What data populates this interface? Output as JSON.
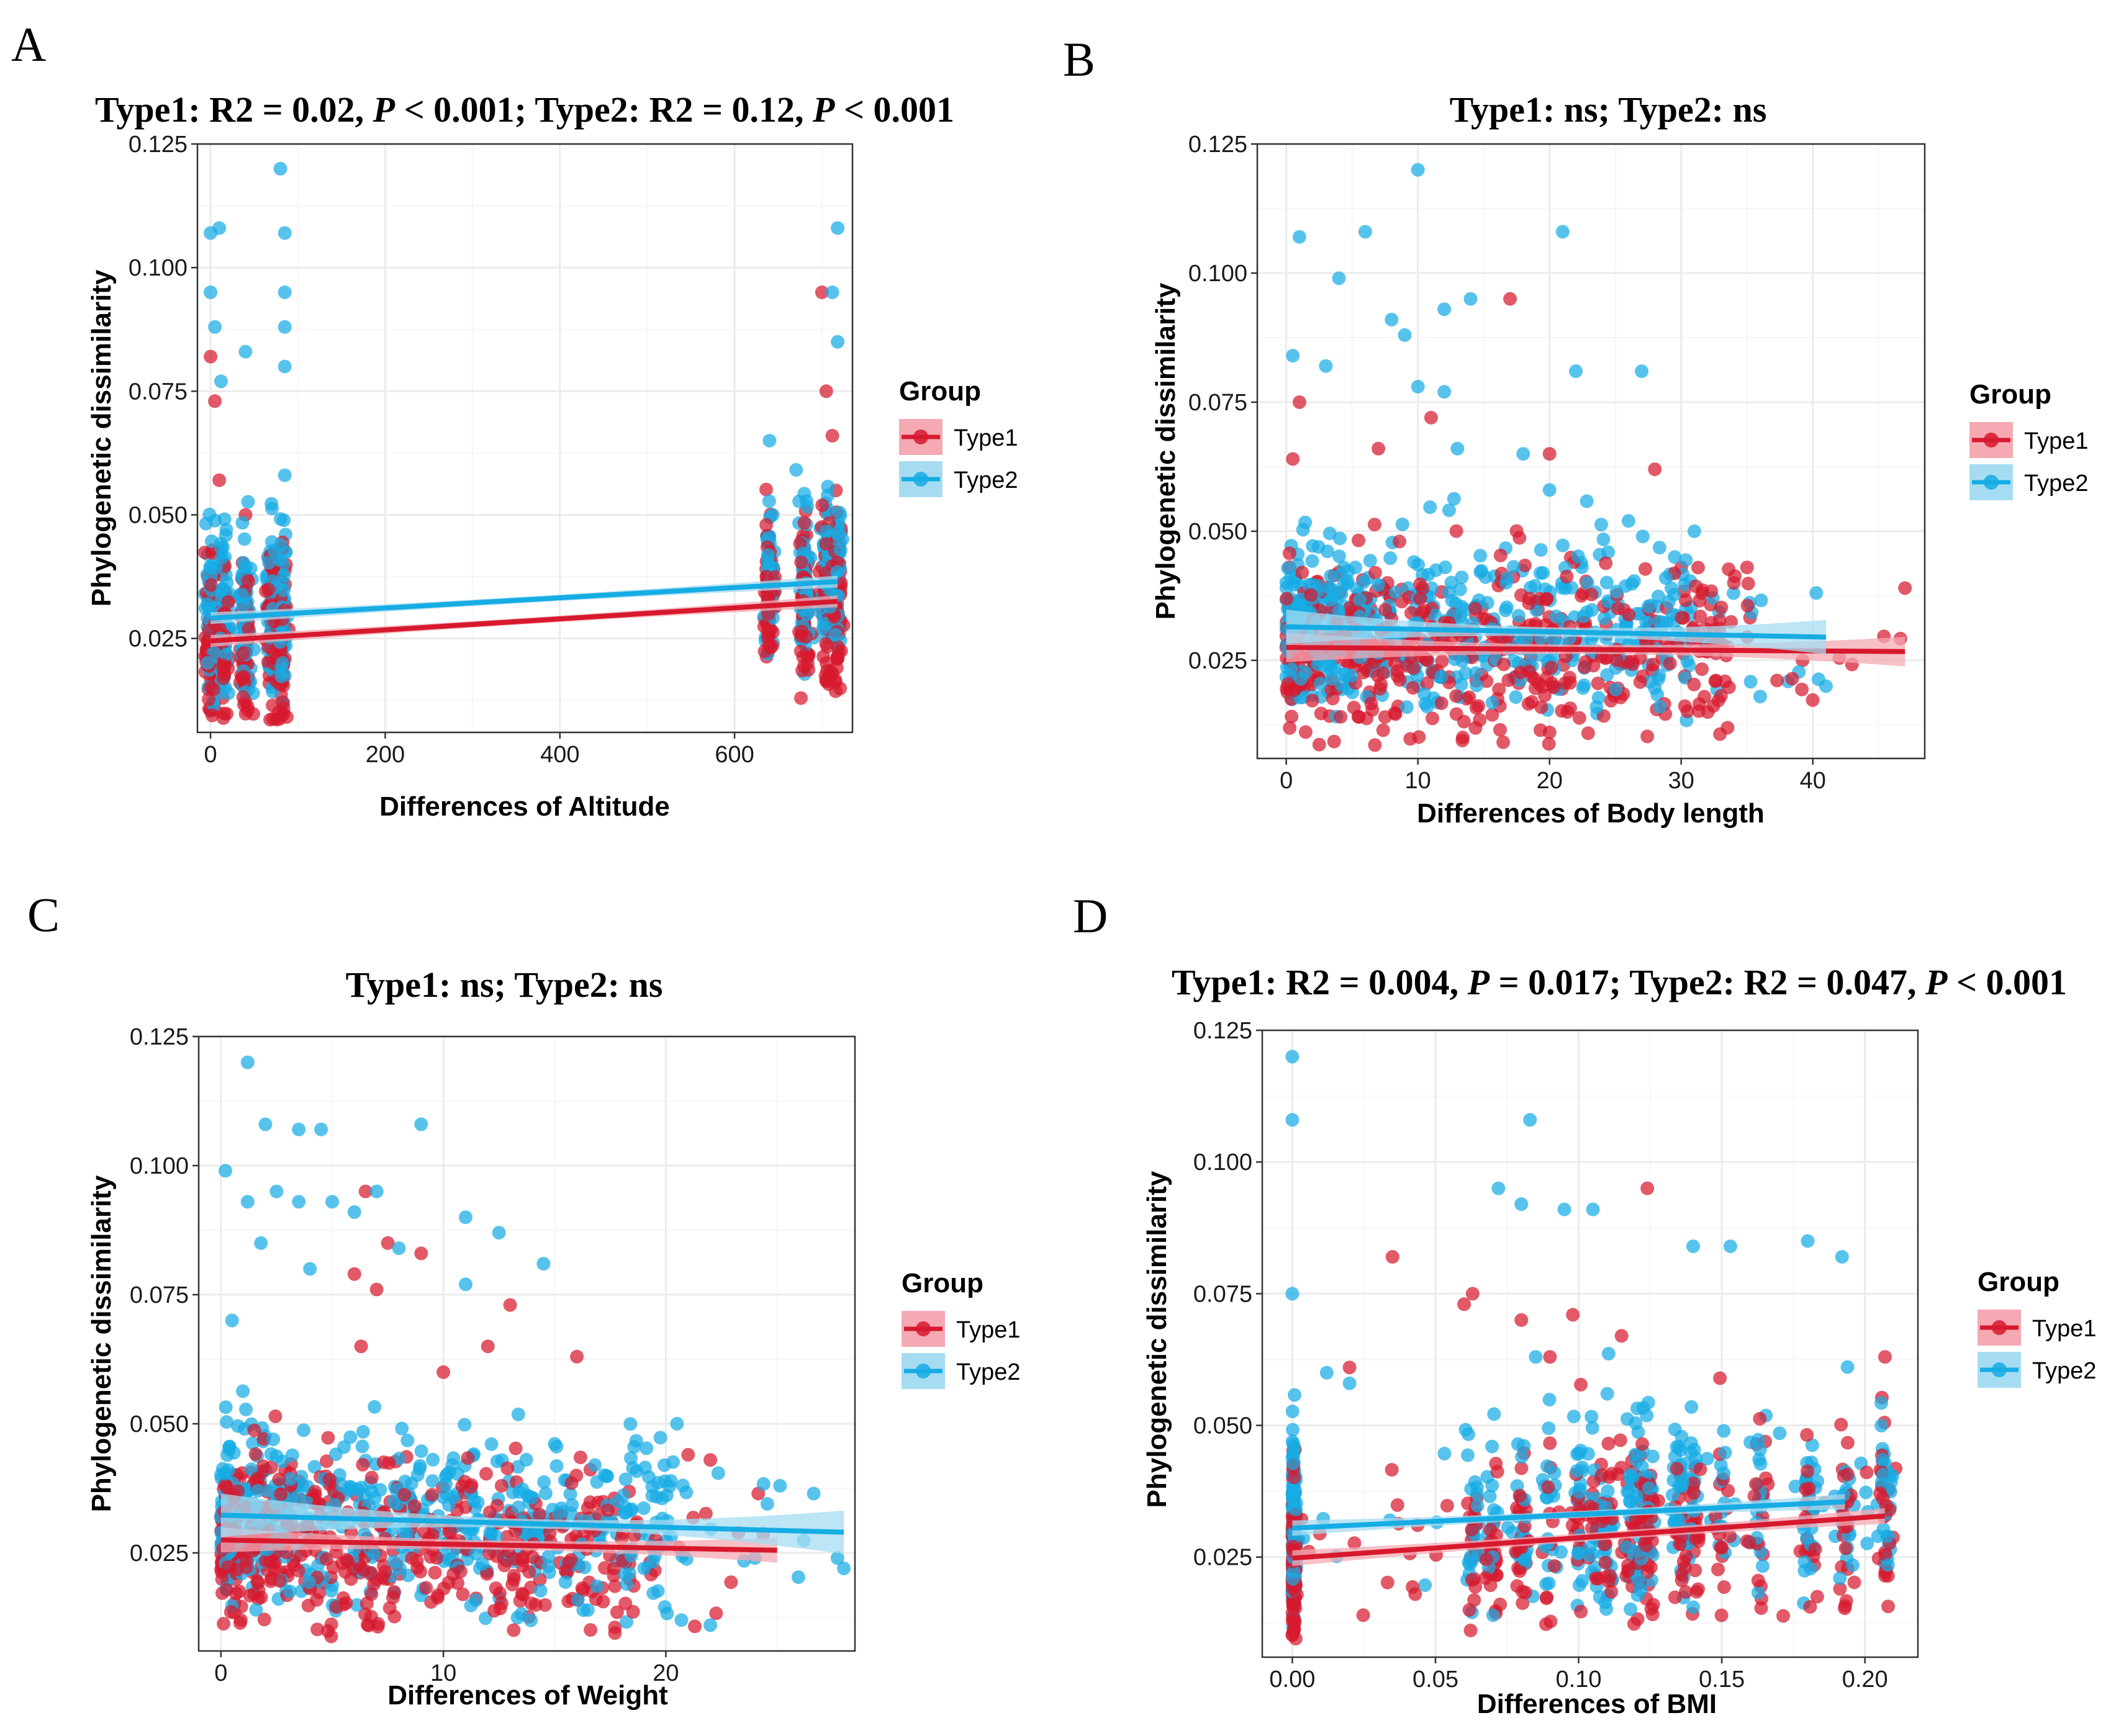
{
  "figure": {
    "legend_title": "Group",
    "groups": [
      "Type1",
      "Type2"
    ],
    "colors": {
      "Type1": "#D7192E",
      "Type2": "#16ACE4",
      "Type1_band": "#F4A9B3",
      "Type2_band": "#A6DCF2"
    }
  },
  "chart_data": [
    {
      "type": "scatter",
      "panel_label": "A",
      "title_parts": [
        {
          "t": "Type1: R2 = 0.02, "
        },
        {
          "t": "P",
          "italic": true
        },
        {
          "t": " < 0.001; Type2: R2 = 0.12, "
        },
        {
          "t": "P",
          "italic": true
        },
        {
          "t": " < 0.001"
        }
      ],
      "xlabel": "Differences of Altitude",
      "ylabel": "Phylogenetic dissimilarity",
      "xlim": [
        -15,
        735
      ],
      "ylim": [
        0.006,
        0.125
      ],
      "xticks": [
        0,
        200,
        400,
        600
      ],
      "xtick_labels": [
        "0",
        "200",
        "400",
        "600"
      ],
      "yticks": [
        0.025,
        0.05,
        0.075,
        0.1,
        0.125
      ],
      "ytick_labels": [
        "0.025",
        "0.050",
        "0.075",
        "0.100",
        "0.125"
      ],
      "x_clusters": [
        0,
        15,
        40,
        70,
        82,
        640,
        680,
        705,
        718
      ],
      "fit": {
        "Type1": {
          "x": [
            0,
            718
          ],
          "y": [
            0.0245,
            0.0325
          ],
          "se": [
            0.0006,
            0.0012
          ]
        },
        "Type2": {
          "x": [
            0,
            718
          ],
          "y": [
            0.0291,
            0.0365
          ],
          "se": [
            0.0006,
            0.0012
          ]
        }
      },
      "highlights": {
        "Type1": [
          [
            0,
            0.082
          ],
          [
            5,
            0.073
          ],
          [
            700,
            0.095
          ],
          [
            705,
            0.075
          ],
          [
            712,
            0.066
          ],
          [
            10,
            0.057
          ],
          [
            40,
            0.05
          ]
        ],
        "Type2": [
          [
            0,
            0.107
          ],
          [
            10,
            0.108
          ],
          [
            80,
            0.12
          ],
          [
            85,
            0.107
          ],
          [
            718,
            0.108
          ],
          [
            712,
            0.095
          ],
          [
            0,
            0.095
          ],
          [
            85,
            0.095
          ],
          [
            85,
            0.088
          ],
          [
            5,
            0.088
          ],
          [
            40,
            0.083
          ],
          [
            12,
            0.077
          ],
          [
            85,
            0.08
          ],
          [
            640,
            0.065
          ],
          [
            85,
            0.058
          ],
          [
            718,
            0.085
          ]
        ]
      }
    },
    {
      "type": "scatter",
      "panel_label": "B",
      "title_parts": [
        {
          "t": "Type1: ns; Type2: ns"
        }
      ],
      "xlabel": "Differences of Body  length",
      "ylabel": "Phylogenetic dissimilarity",
      "xlim": [
        -2.2,
        48.5
      ],
      "ylim": [
        0.006,
        0.125
      ],
      "xticks": [
        0,
        10,
        20,
        30,
        40
      ],
      "xtick_labels": [
        "0",
        "10",
        "20",
        "30",
        "40"
      ],
      "yticks": [
        0.025,
        0.05,
        0.075,
        0.1,
        0.125
      ],
      "ytick_labels": [
        "0.025",
        "0.050",
        "0.075",
        "0.100",
        "0.125"
      ],
      "x_max": {
        "Type1": 47,
        "Type2": 41
      },
      "fit": {
        "Type1": {
          "x": [
            0,
            47
          ],
          "y": [
            0.0275,
            0.0267
          ],
          "se": [
            0.0008,
            0.003
          ]
        },
        "Type2": {
          "x": [
            0,
            41
          ],
          "y": [
            0.0315,
            0.0295
          ],
          "se": [
            0.0008,
            0.0035
          ]
        }
      },
      "highlights": {
        "Type1": [
          [
            17,
            0.095
          ],
          [
            1,
            0.075
          ],
          [
            11,
            0.072
          ],
          [
            7,
            0.066
          ],
          [
            28,
            0.062
          ],
          [
            20,
            0.065
          ],
          [
            0.5,
            0.064
          ],
          [
            47,
            0.039
          ],
          [
            30,
            0.043
          ],
          [
            35,
            0.043
          ],
          [
            34,
            0.04
          ]
        ],
        "Type2": [
          [
            10,
            0.12
          ],
          [
            21,
            0.108
          ],
          [
            1,
            0.107
          ],
          [
            6,
            0.108
          ],
          [
            4,
            0.099
          ],
          [
            8,
            0.091
          ],
          [
            14,
            0.095
          ],
          [
            12,
            0.093
          ],
          [
            9,
            0.088
          ],
          [
            0.5,
            0.084
          ],
          [
            22,
            0.081
          ],
          [
            27,
            0.081
          ],
          [
            3,
            0.082
          ],
          [
            10,
            0.078
          ],
          [
            12,
            0.077
          ],
          [
            13,
            0.066
          ],
          [
            18,
            0.065
          ],
          [
            20,
            0.058
          ],
          [
            26,
            0.052
          ],
          [
            31,
            0.05
          ],
          [
            41,
            0.02
          ],
          [
            36,
            0.018
          ]
        ]
      }
    },
    {
      "type": "scatter",
      "panel_label": "C",
      "title_parts": [
        {
          "t": "Type1: ns; Type2: ns"
        }
      ],
      "xlabel": "Differences of Weight",
      "ylabel": "Phylogenetic dissimilarity",
      "xlim": [
        -1.0,
        28.5
      ],
      "ylim": [
        0.006,
        0.125
      ],
      "xticks": [
        0,
        10,
        20
      ],
      "xtick_labels": [
        "0",
        "10",
        "20"
      ],
      "yticks": [
        0.025,
        0.05,
        0.075,
        0.1,
        0.125
      ],
      "ytick_labels": [
        "0.025",
        "0.050",
        "0.075",
        "0.100",
        "0.125"
      ],
      "x_max": {
        "Type1": 25,
        "Type2": 28
      },
      "fit": {
        "Type1": {
          "x": [
            0,
            25
          ],
          "y": [
            0.0275,
            0.0255
          ],
          "se": [
            0.0008,
            0.0025
          ]
        },
        "Type2": {
          "x": [
            0,
            28
          ],
          "y": [
            0.0323,
            0.029
          ],
          "se": [
            0.0008,
            0.0045
          ]
        }
      },
      "highlights": {
        "Type1": [
          [
            6.5,
            0.095
          ],
          [
            7.5,
            0.085
          ],
          [
            9,
            0.083
          ],
          [
            6,
            0.079
          ],
          [
            7,
            0.076
          ],
          [
            13,
            0.073
          ],
          [
            6.3,
            0.065
          ],
          [
            16,
            0.063
          ],
          [
            10,
            0.06
          ],
          [
            12,
            0.065
          ],
          [
            21,
            0.044
          ],
          [
            22,
            0.043
          ]
        ],
        "Type2": [
          [
            1.2,
            0.12
          ],
          [
            2,
            0.108
          ],
          [
            3.5,
            0.107
          ],
          [
            4.5,
            0.107
          ],
          [
            9,
            0.108
          ],
          [
            0.2,
            0.099
          ],
          [
            1.2,
            0.093
          ],
          [
            2.5,
            0.095
          ],
          [
            3.5,
            0.093
          ],
          [
            5,
            0.093
          ],
          [
            6,
            0.091
          ],
          [
            7,
            0.095
          ],
          [
            11,
            0.09
          ],
          [
            4,
            0.08
          ],
          [
            1.8,
            0.085
          ],
          [
            12.5,
            0.087
          ],
          [
            14.5,
            0.081
          ],
          [
            8,
            0.084
          ],
          [
            11,
            0.077
          ],
          [
            0.5,
            0.07
          ],
          [
            20.5,
            0.05
          ],
          [
            28,
            0.022
          ],
          [
            24,
            0.024
          ],
          [
            22,
            0.011
          ]
        ]
      }
    },
    {
      "type": "scatter",
      "panel_label": "D",
      "title_parts": [
        {
          "t": "Type1: R2 = 0.004, "
        },
        {
          "t": "P",
          "italic": true
        },
        {
          "t": " = 0.017; Type2: R2 = 0.047, "
        },
        {
          "t": "P",
          "italic": true
        },
        {
          "t": " < 0.001"
        }
      ],
      "xlabel": "Differences of BMI",
      "ylabel": "Phylogenetic dissimilarity",
      "xlim": [
        -0.0105,
        0.2185
      ],
      "ylim": [
        0.006,
        0.125
      ],
      "xticks": [
        0,
        0.05,
        0.1,
        0.15,
        0.2
      ],
      "xtick_labels": [
        "0.00",
        "0.05",
        "0.10",
        "0.15",
        "0.20"
      ],
      "yticks": [
        0.025,
        0.05,
        0.075,
        0.1,
        0.125
      ],
      "ytick_labels": [
        "0.025",
        "0.050",
        "0.075",
        "0.100",
        "0.125"
      ],
      "x_clusters": [
        0.063,
        0.07,
        0.08,
        0.09,
        0.1,
        0.106,
        0.11,
        0.118,
        0.122,
        0.125,
        0.135,
        0.14,
        0.15,
        0.163,
        0.18,
        0.193,
        0.207
      ],
      "fit": {
        "Type1": {
          "x": [
            0,
            0.207
          ],
          "y": [
            0.0248,
            0.0328
          ],
          "se": [
            0.0007,
            0.0015
          ]
        },
        "Type2": {
          "x": [
            0,
            0.193
          ],
          "y": [
            0.0305,
            0.0355
          ],
          "se": [
            0.0006,
            0.0015
          ]
        }
      },
      "highlights": {
        "Type1": [
          [
            0.124,
            0.095
          ],
          [
            0.035,
            0.082
          ],
          [
            0.063,
            0.075
          ],
          [
            0.06,
            0.073
          ],
          [
            0.08,
            0.07
          ],
          [
            0.098,
            0.071
          ],
          [
            0.115,
            0.067
          ],
          [
            0.207,
            0.063
          ],
          [
            0.09,
            0.063
          ],
          [
            0.02,
            0.061
          ]
        ],
        "Type2": [
          [
            0,
            0.12
          ],
          [
            0,
            0.108
          ],
          [
            0.083,
            0.108
          ],
          [
            0.072,
            0.095
          ],
          [
            0.08,
            0.092
          ],
          [
            0.095,
            0.091
          ],
          [
            0.105,
            0.091
          ],
          [
            0.14,
            0.084
          ],
          [
            0.153,
            0.084
          ],
          [
            0.18,
            0.085
          ],
          [
            0.192,
            0.082
          ],
          [
            0.0,
            0.075
          ],
          [
            0.012,
            0.06
          ],
          [
            0.02,
            0.058
          ],
          [
            0.085,
            0.063
          ],
          [
            0.11,
            0.056
          ]
        ]
      }
    }
  ]
}
